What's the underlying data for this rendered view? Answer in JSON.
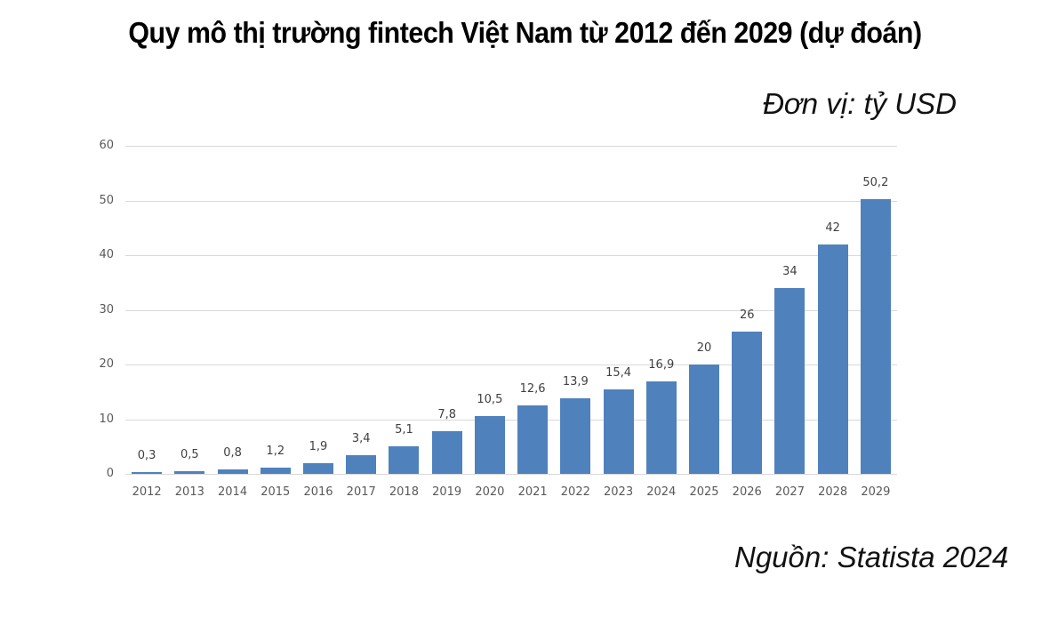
{
  "title": "Quy mô thị trường fintech Việt Nam từ 2012 đến 2029 (dự đoán)",
  "unit_label": "Đơn vị: tỷ USD",
  "source_label": "Nguồn: Statista 2024",
  "colors": {
    "bar": "#4f81bd",
    "grid": "#d9d9d9",
    "axis_text": "#595959"
  },
  "chart_data": {
    "type": "bar",
    "title": "Quy mô thị trường fintech Việt Nam từ 2012 đến 2029 (dự đoán)",
    "subtitle": "Đơn vị: tỷ USD",
    "xlabel": "",
    "ylabel": "",
    "ylim": [
      0,
      60
    ],
    "yticks": [
      0,
      10,
      20,
      30,
      40,
      50,
      60
    ],
    "ytick_labels": [
      "0",
      "10",
      "20",
      "30",
      "40",
      "50",
      "60"
    ],
    "grid": true,
    "legend": null,
    "annotation": "Nguồn: Statista 2024",
    "categories": [
      "2012",
      "2013",
      "2014",
      "2015",
      "2016",
      "2017",
      "2018",
      "2019",
      "2020",
      "2021",
      "2022",
      "2023",
      "2024",
      "2025",
      "2026",
      "2027",
      "2028",
      "2029"
    ],
    "values": [
      0.3,
      0.5,
      0.8,
      1.2,
      1.9,
      3.4,
      5.1,
      7.8,
      10.5,
      12.6,
      13.9,
      15.4,
      16.9,
      20,
      26,
      34,
      42,
      50.2
    ],
    "value_labels": [
      "0,3",
      "0,5",
      "0,8",
      "1,2",
      "1,9",
      "3,4",
      "5,1",
      "7,8",
      "10,5",
      "12,6",
      "13,9",
      "15,4",
      "16,9",
      "20",
      "26",
      "34",
      "42",
      "50,2"
    ]
  }
}
